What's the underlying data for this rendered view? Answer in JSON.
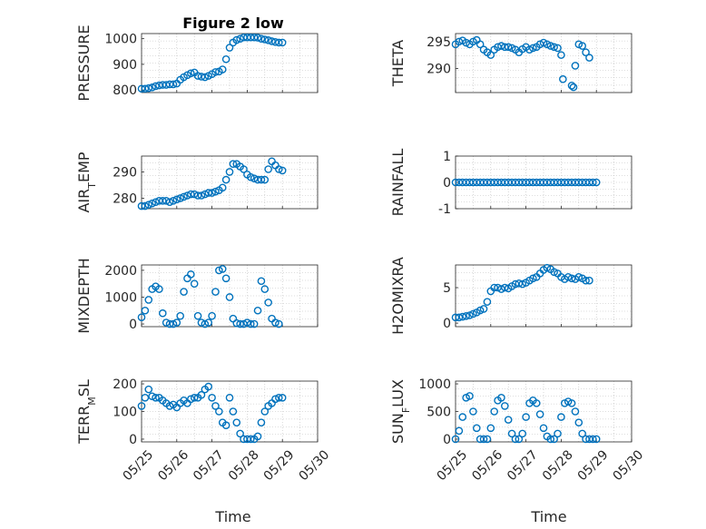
{
  "figure": {
    "title": "Figure 2 low"
  },
  "x_axis": {
    "label": "Time",
    "ticks": [
      {
        "v": 0,
        "label": "05/25"
      },
      {
        "v": 1,
        "label": "05/26"
      },
      {
        "v": 2,
        "label": "05/27"
      },
      {
        "v": 3,
        "label": "05/28"
      },
      {
        "v": 4,
        "label": "05/29"
      },
      {
        "v": 5,
        "label": "05/30"
      }
    ]
  },
  "chart_data": [
    {
      "id": "pressure",
      "type": "scatter",
      "ylabel": "PRESSURE",
      "title": "Figure 2 low",
      "ylim": [
        790,
        1020
      ],
      "yticks": [
        800,
        900,
        1000
      ],
      "grid": true,
      "color": "#0072BD",
      "x": [
        0,
        0.1,
        0.2,
        0.3,
        0.4,
        0.5,
        0.6,
        0.7,
        0.8,
        0.9,
        1.0,
        1.1,
        1.2,
        1.3,
        1.4,
        1.5,
        1.6,
        1.7,
        1.8,
        1.9,
        2.0,
        2.1,
        2.2,
        2.3,
        2.4,
        2.5,
        2.6,
        2.7,
        2.8,
        2.9,
        3.0,
        3.1,
        3.2,
        3.3,
        3.4,
        3.5,
        3.6,
        3.7,
        3.8,
        3.9,
        4.0
      ],
      "y": [
        805,
        805,
        807,
        810,
        815,
        818,
        820,
        820,
        822,
        822,
        825,
        840,
        850,
        858,
        865,
        868,
        855,
        852,
        850,
        855,
        862,
        870,
        872,
        880,
        920,
        965,
        985,
        995,
        1000,
        1005,
        1005,
        1005,
        1005,
        1004,
        1000,
        997,
        994,
        990,
        987,
        985,
        985
      ]
    },
    {
      "id": "theta",
      "type": "scatter",
      "ylabel": "THETA",
      "ylim": [
        285.5,
        296.5
      ],
      "yticks": [
        290,
        295
      ],
      "grid": true,
      "color": "#0072BD",
      "x": [
        0,
        0.1,
        0.2,
        0.3,
        0.4,
        0.5,
        0.6,
        0.7,
        0.8,
        0.9,
        1.0,
        1.1,
        1.2,
        1.3,
        1.4,
        1.5,
        1.6,
        1.7,
        1.8,
        1.9,
        2.0,
        2.1,
        2.2,
        2.3,
        2.4,
        2.5,
        2.6,
        2.7,
        2.8,
        2.9,
        3.0,
        3.05,
        3.3,
        3.35,
        3.4,
        3.5,
        3.6,
        3.7,
        3.8
      ],
      "y": [
        294.5,
        295,
        295.2,
        294.8,
        294.5,
        295,
        295.3,
        294.5,
        293.5,
        293.0,
        292.5,
        293.5,
        294.0,
        294.2,
        294.0,
        294.0,
        293.8,
        293.5,
        293.0,
        293.6,
        294.0,
        293.5,
        293.8,
        294.0,
        294.5,
        294.8,
        294.5,
        294.2,
        294.0,
        293.8,
        292.5,
        288.0,
        286.8,
        286.5,
        290.5,
        294.5,
        294.2,
        293.0,
        292.0
      ]
    },
    {
      "id": "air_temp",
      "type": "scatter",
      "ylabel": "AIR_TEMP",
      "ylim": [
        276,
        296
      ],
      "yticks": [
        280,
        290
      ],
      "grid": true,
      "color": "#0072BD",
      "x": [
        0,
        0.1,
        0.2,
        0.3,
        0.4,
        0.5,
        0.6,
        0.7,
        0.8,
        0.9,
        1.0,
        1.1,
        1.2,
        1.3,
        1.4,
        1.5,
        1.6,
        1.7,
        1.8,
        1.9,
        2.0,
        2.1,
        2.2,
        2.3,
        2.4,
        2.5,
        2.6,
        2.7,
        2.8,
        2.9,
        3.0,
        3.1,
        3.2,
        3.3,
        3.4,
        3.5,
        3.6,
        3.7,
        3.8,
        3.9,
        4.0
      ],
      "y": [
        277,
        277,
        277.5,
        278,
        278.5,
        279,
        279,
        279,
        278.5,
        279,
        279.5,
        280,
        280.5,
        281,
        281.5,
        281.5,
        281,
        281,
        281.5,
        282,
        282,
        282.5,
        283,
        284,
        287,
        290,
        293,
        293,
        292,
        291,
        289,
        288,
        287.5,
        287,
        287,
        287,
        291,
        294,
        292.5,
        291,
        290.5
      ]
    },
    {
      "id": "rainfall",
      "type": "scatter",
      "ylabel": "RAINFALL",
      "ylim": [
        -1,
        1
      ],
      "yticks": [
        -1,
        0,
        1
      ],
      "grid": true,
      "color": "#0072BD",
      "x": [
        0,
        0.1,
        0.2,
        0.3,
        0.4,
        0.5,
        0.6,
        0.7,
        0.8,
        0.9,
        1.0,
        1.1,
        1.2,
        1.3,
        1.4,
        1.5,
        1.6,
        1.7,
        1.8,
        1.9,
        2.0,
        2.1,
        2.2,
        2.3,
        2.4,
        2.5,
        2.6,
        2.7,
        2.8,
        2.9,
        3.0,
        3.1,
        3.2,
        3.3,
        3.4,
        3.5,
        3.6,
        3.7,
        3.8,
        3.9,
        4.0
      ],
      "y": [
        0,
        0,
        0,
        0,
        0,
        0,
        0,
        0,
        0,
        0,
        0,
        0,
        0,
        0,
        0,
        0,
        0,
        0,
        0,
        0,
        0,
        0,
        0,
        0,
        0,
        0,
        0,
        0,
        0,
        0,
        0,
        0,
        0,
        0,
        0,
        0,
        0,
        0,
        0,
        0,
        0
      ]
    },
    {
      "id": "mixdepth",
      "type": "scatter",
      "ylabel": "MIXDEPTH",
      "ylim": [
        -100,
        2200
      ],
      "yticks": [
        0,
        1000,
        2000
      ],
      "grid": true,
      "color": "#0072BD",
      "x": [
        0,
        0.1,
        0.2,
        0.3,
        0.4,
        0.5,
        0.6,
        0.7,
        0.8,
        0.9,
        1.0,
        1.1,
        1.2,
        1.3,
        1.4,
        1.5,
        1.6,
        1.7,
        1.8,
        1.9,
        2.0,
        2.1,
        2.2,
        2.3,
        2.4,
        2.5,
        2.6,
        2.7,
        2.8,
        2.9,
        3.0,
        3.1,
        3.2,
        3.3,
        3.4,
        3.5,
        3.6,
        3.7,
        3.8,
        3.9
      ],
      "y": [
        250,
        500,
        900,
        1300,
        1400,
        1300,
        400,
        50,
        0,
        0,
        50,
        300,
        1200,
        1700,
        1850,
        1500,
        300,
        50,
        0,
        50,
        300,
        1200,
        2000,
        2050,
        1700,
        1000,
        200,
        30,
        0,
        0,
        50,
        0,
        0,
        500,
        1600,
        1300,
        800,
        200,
        50,
        0
      ]
    },
    {
      "id": "h2omixra",
      "type": "scatter",
      "ylabel": "H2OMIXRA",
      "ylim": [
        -0.5,
        8.2
      ],
      "yticks": [
        0,
        5
      ],
      "grid": true,
      "color": "#0072BD",
      "x": [
        0,
        0.1,
        0.2,
        0.3,
        0.4,
        0.5,
        0.6,
        0.7,
        0.8,
        0.9,
        1.0,
        1.1,
        1.2,
        1.3,
        1.4,
        1.5,
        1.6,
        1.7,
        1.8,
        1.9,
        2.0,
        2.1,
        2.2,
        2.3,
        2.4,
        2.5,
        2.6,
        2.7,
        2.8,
        2.9,
        3.0,
        3.1,
        3.2,
        3.3,
        3.4,
        3.5,
        3.6,
        3.7,
        3.8
      ],
      "y": [
        0.8,
        0.8,
        0.9,
        1.0,
        1.1,
        1.3,
        1.5,
        1.8,
        2.0,
        3.0,
        4.5,
        5.0,
        5.0,
        4.8,
        5.0,
        4.9,
        5.2,
        5.5,
        5.6,
        5.5,
        5.7,
        6.0,
        6.3,
        6.5,
        7.0,
        7.5,
        7.8,
        7.6,
        7.2,
        7.0,
        6.5,
        6.2,
        6.5,
        6.3,
        6.2,
        6.5,
        6.3,
        6.0,
        6.0
      ]
    },
    {
      "id": "terr_msl",
      "type": "scatter",
      "ylabel": "TERR_MSL",
      "ylim": [
        -10,
        210
      ],
      "yticks": [
        0,
        100,
        200
      ],
      "grid": true,
      "color": "#0072BD",
      "x": [
        0,
        0.1,
        0.2,
        0.3,
        0.4,
        0.5,
        0.6,
        0.7,
        0.8,
        0.9,
        1.0,
        1.1,
        1.2,
        1.3,
        1.4,
        1.5,
        1.6,
        1.7,
        1.8,
        1.9,
        2.0,
        2.1,
        2.2,
        2.3,
        2.4,
        2.5,
        2.6,
        2.7,
        2.8,
        2.9,
        3.0,
        3.1,
        3.2,
        3.3,
        3.4,
        3.5,
        3.6,
        3.7,
        3.8,
        3.9,
        4.0
      ],
      "y": [
        120,
        150,
        180,
        155,
        150,
        150,
        140,
        130,
        120,
        125,
        115,
        130,
        140,
        130,
        145,
        150,
        150,
        160,
        180,
        190,
        150,
        120,
        100,
        60,
        50,
        150,
        100,
        60,
        20,
        0,
        0,
        0,
        0,
        10,
        60,
        100,
        120,
        130,
        145,
        150,
        150
      ]
    },
    {
      "id": "sun_flux",
      "type": "scatter",
      "ylabel": "SUN_FLUX",
      "ylim": [
        -50,
        1050
      ],
      "yticks": [
        0,
        500,
        1000
      ],
      "grid": true,
      "color": "#0072BD",
      "x": [
        0,
        0.1,
        0.2,
        0.3,
        0.4,
        0.5,
        0.6,
        0.7,
        0.8,
        0.9,
        1.0,
        1.1,
        1.2,
        1.3,
        1.4,
        1.5,
        1.6,
        1.7,
        1.8,
        1.9,
        2.0,
        2.1,
        2.2,
        2.3,
        2.4,
        2.5,
        2.6,
        2.7,
        2.8,
        2.9,
        3.0,
        3.1,
        3.2,
        3.3,
        3.4,
        3.5,
        3.6,
        3.7,
        3.8,
        3.9,
        4.0
      ],
      "y": [
        0,
        150,
        400,
        750,
        780,
        500,
        200,
        0,
        0,
        0,
        200,
        500,
        700,
        750,
        600,
        350,
        100,
        0,
        0,
        100,
        400,
        650,
        700,
        650,
        450,
        200,
        50,
        0,
        0,
        100,
        400,
        650,
        680,
        650,
        500,
        300,
        100,
        0,
        0,
        0,
        0
      ]
    }
  ]
}
